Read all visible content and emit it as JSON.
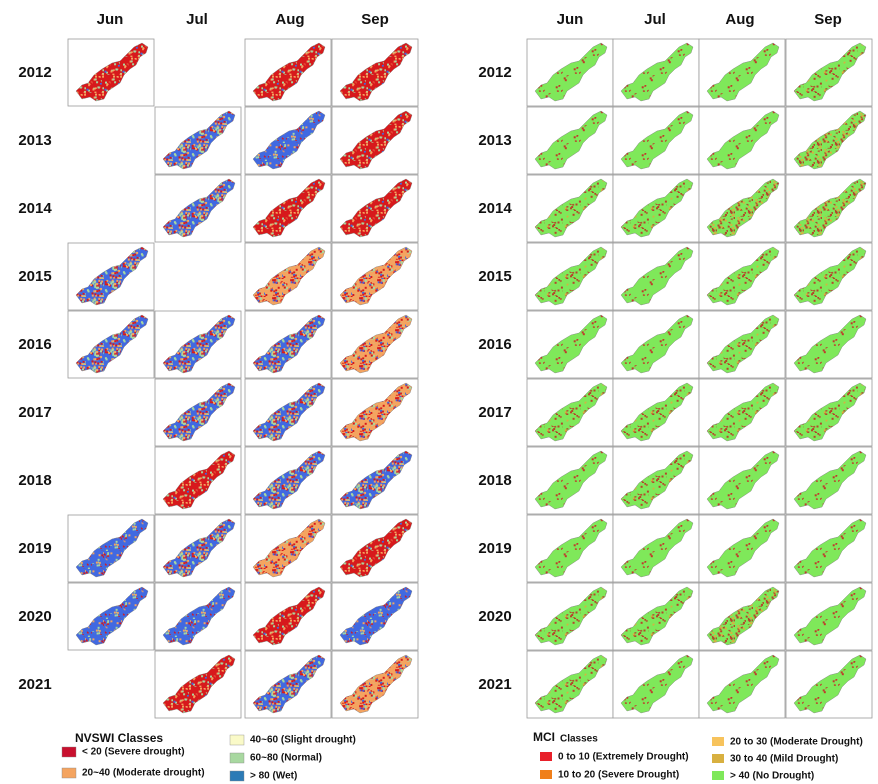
{
  "left": {
    "months": [
      "Jun",
      "Jul",
      "Aug",
      "Sep"
    ],
    "years": [
      "2012",
      "2013",
      "2014",
      "2015",
      "2016",
      "2017",
      "2018",
      "2019",
      "2020",
      "2021"
    ],
    "legend": {
      "title": "NVSWI Classes",
      "items": [
        {
          "label": "< 20 (Severe drought)",
          "color": "#c8102e"
        },
        {
          "label": "20~40 (Moderate drought)",
          "color": "#f4a460"
        },
        {
          "label": "40~60 (Slight drought)",
          "color": "#fafac8"
        },
        {
          "label": "60~80 (Normal)",
          "color": "#a8d8a0"
        },
        {
          "label": "> 80 (Wet)",
          "color": "#2c7bb6"
        }
      ]
    }
  },
  "right": {
    "months": [
      "Jun",
      "Jul",
      "Aug",
      "Sep"
    ],
    "years": [
      "2012",
      "2013",
      "2014",
      "2015",
      "2016",
      "2017",
      "2018",
      "2019",
      "2020",
      "2021"
    ],
    "legend": {
      "title": "MCI",
      "subtitle": "Classes",
      "items": [
        {
          "label": "0 to 10 (Extremely Drought)",
          "color": "#e8202a"
        },
        {
          "label": "10 to 20 (Severe Drought)",
          "color": "#f07f1a"
        },
        {
          "label": "20 to 30 (Moderate Drought)",
          "color": "#f7c35c"
        },
        {
          "label": "30 to 40 (Mild Drought)",
          "color": "#d8b040"
        },
        {
          "label": "> 40 (No Drought)",
          "color": "#7fe85a"
        }
      ]
    }
  }
}
